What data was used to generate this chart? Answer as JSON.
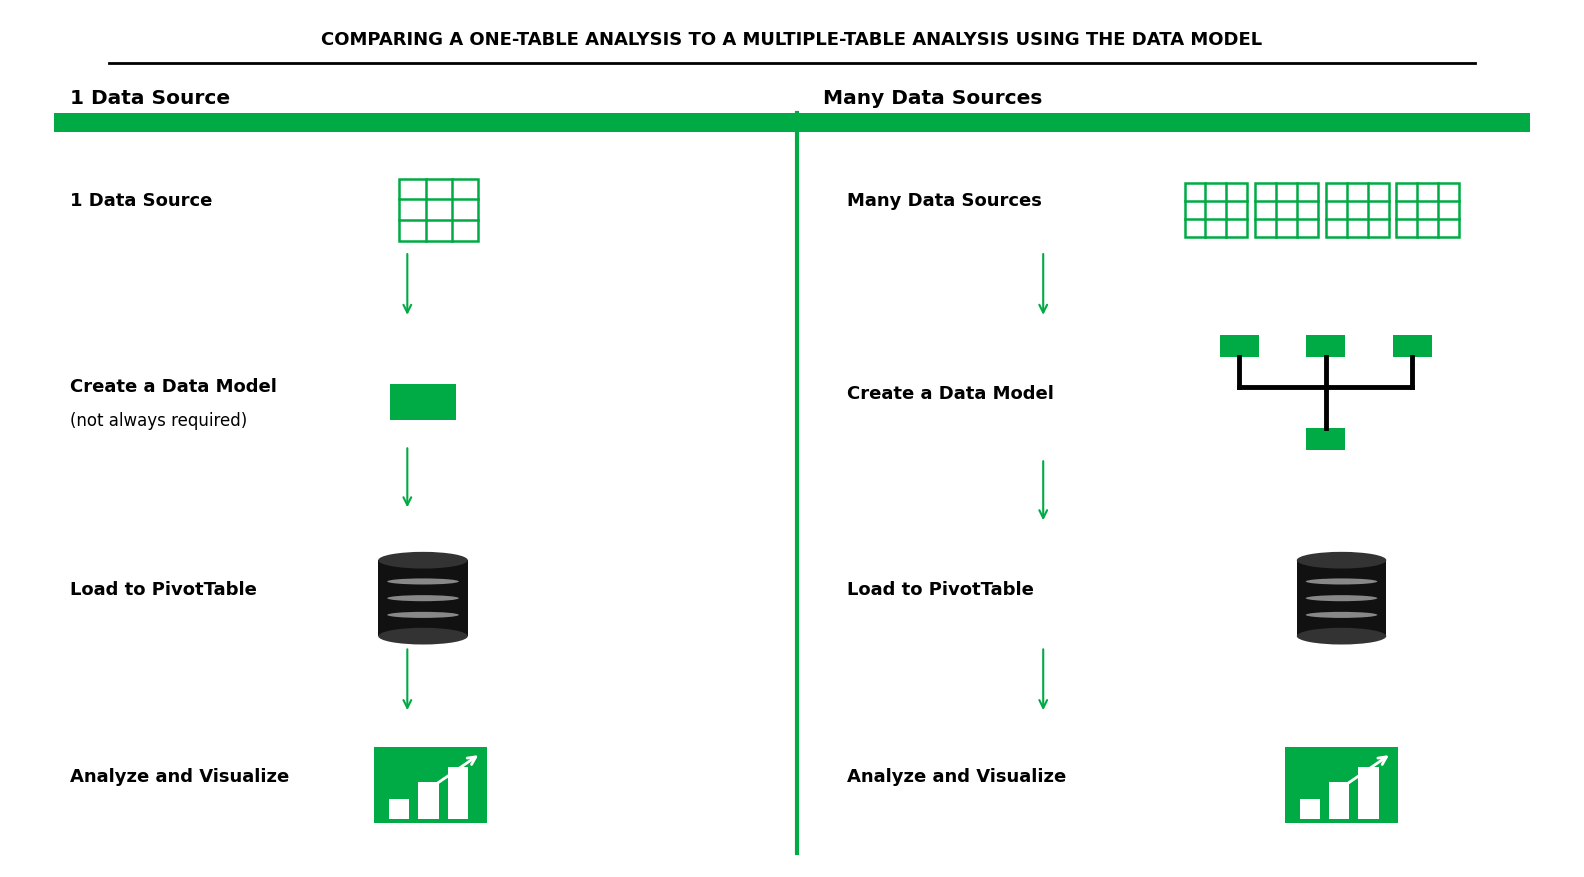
{
  "title": "COMPARING A ONE-TABLE ANALYSIS TO A MULTIPLE-TABLE ANALYSIS USING THE DATA MODEL",
  "bg_color": "#ffffff",
  "green": "#00AA44",
  "black": "#000000",
  "left_header": "1 Data Source",
  "right_header": "Many Data Sources"
}
